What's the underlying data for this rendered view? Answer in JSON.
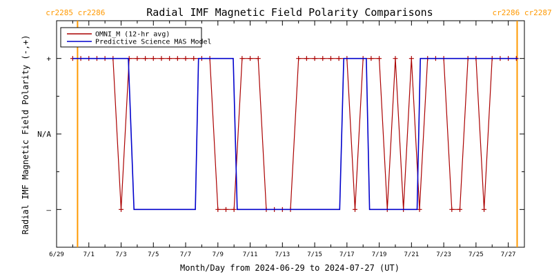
{
  "chart_data": {
    "type": "line",
    "title": "Radial IMF Magnetic Field Polarity Comparisons",
    "xlabel": "Month/Day from 2024-06-29 to 2024-07-27 (UT)",
    "ylabel": "Radial IMF Magnetic Field Polarity (-,+)",
    "xlim": [
      0,
      29
    ],
    "ylim": [
      -1.5,
      1.5
    ],
    "y_ticks": [
      {
        "value": 1,
        "label": "+"
      },
      {
        "value": 0,
        "label": "N/A"
      },
      {
        "value": -1,
        "label": "–"
      }
    ],
    "x_ticks": [
      {
        "value": 0,
        "label": "6/29"
      },
      {
        "value": 2,
        "label": "7/1"
      },
      {
        "value": 4,
        "label": "7/3"
      },
      {
        "value": 6,
        "label": "7/5"
      },
      {
        "value": 8,
        "label": "7/7"
      },
      {
        "value": 10,
        "label": "7/9"
      },
      {
        "value": 12,
        "label": "7/11"
      },
      {
        "value": 14,
        "label": "7/13"
      },
      {
        "value": 16,
        "label": "7/15"
      },
      {
        "value": 18,
        "label": "7/17"
      },
      {
        "value": 20,
        "label": "7/19"
      },
      {
        "value": 22,
        "label": "7/21"
      },
      {
        "value": 24,
        "label": "7/23"
      },
      {
        "value": 26,
        "label": "7/25"
      },
      {
        "value": 28,
        "label": "7/27"
      }
    ],
    "carrington_markers": [
      {
        "x": 1.3,
        "label": "cr2285 cr2286",
        "anchor": "end"
      },
      {
        "x": 28.55,
        "label": "cr2286 cr2287",
        "anchor": "start"
      }
    ],
    "legend_position": "top-left",
    "grid": false,
    "series": [
      {
        "name": "OMNI_M (12-hr avg)",
        "color": "#aa0000",
        "markers": true,
        "x": [
          1.0,
          1.5,
          2.0,
          2.5,
          3.0,
          3.5,
          4.0,
          4.5,
          5.0,
          5.5,
          6.0,
          6.5,
          7.0,
          7.5,
          8.0,
          8.5,
          9.0,
          9.5,
          10.0,
          10.5,
          11.0,
          11.5,
          12.0,
          12.5,
          13.0,
          13.5,
          14.0,
          14.5,
          15.0,
          15.5,
          16.0,
          16.5,
          17.0,
          17.5,
          18.0,
          18.5,
          19.0,
          19.5,
          20.0,
          20.5,
          21.0,
          21.5,
          22.0,
          22.5,
          23.0,
          23.5,
          24.0,
          24.5,
          25.0,
          25.5,
          26.0,
          26.5,
          27.0,
          27.5,
          28.0,
          28.5
        ],
        "values": [
          1,
          1,
          1,
          1,
          1,
          1,
          -1,
          1,
          1,
          1,
          1,
          1,
          1,
          1,
          1,
          1,
          1,
          1,
          -1,
          -1,
          -1,
          1,
          1,
          1,
          -1,
          -1,
          -1,
          -1,
          1,
          1,
          1,
          1,
          1,
          1,
          1,
          -1,
          1,
          1,
          1,
          -1,
          1,
          -1,
          1,
          -1,
          1,
          1,
          1,
          -1,
          -1,
          1,
          1,
          -1,
          1,
          1,
          1,
          1
        ]
      },
      {
        "name": "Predictive Science MAS Model",
        "color": "#0000cc",
        "markers": false,
        "x": [
          1.0,
          4.45,
          4.8,
          8.6,
          8.8,
          10.95,
          11.2,
          17.55,
          17.8,
          19.2,
          19.4,
          22.35,
          22.55,
          28.6
        ],
        "values": [
          1,
          1,
          -1,
          -1,
          1,
          1,
          -1,
          -1,
          1,
          1,
          -1,
          -1,
          1,
          1
        ]
      }
    ]
  }
}
